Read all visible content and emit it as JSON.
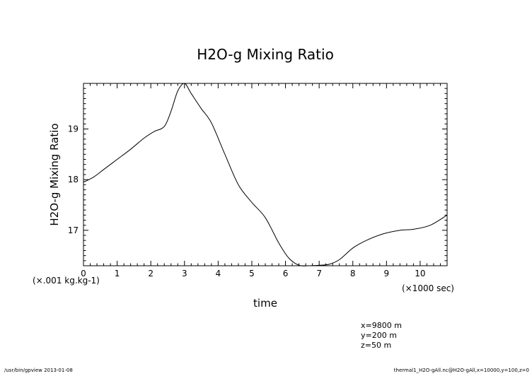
{
  "chart_data": {
    "type": "line",
    "title": "H2O-g Mixing Ratio",
    "xlabel": "time",
    "ylabel": "H2O-g Mixing Ratio",
    "x_unit_label": "(×1000 sec)",
    "y_unit_label": "(×.001 kg.kg-1)",
    "xlim": [
      0,
      10.8
    ],
    "ylim": [
      16.3,
      19.9
    ],
    "x_ticks": [
      0,
      1,
      2,
      3,
      4,
      5,
      6,
      7,
      8,
      9,
      10
    ],
    "y_ticks": [
      17,
      18,
      19
    ],
    "x_tick_labels": [
      "0",
      "1",
      "2",
      "3",
      "4",
      "5",
      "6",
      "7",
      "8",
      "9",
      "10"
    ],
    "y_tick_labels": [
      "17",
      "18",
      "19"
    ],
    "grid": false,
    "series": [
      {
        "x": [
          0,
          0.3,
          0.6,
          1.0,
          1.4,
          1.8,
          2.1,
          2.4,
          2.6,
          2.8,
          3.0,
          3.2,
          3.5,
          3.8,
          4.2,
          4.6,
          5.0,
          5.4,
          5.8,
          6.1,
          6.4,
          6.7,
          7.0,
          7.3,
          7.6,
          8.0,
          8.4,
          8.9,
          9.4,
          9.8,
          10.3,
          10.8
        ],
        "y": [
          17.95,
          18.05,
          18.2,
          18.4,
          18.6,
          18.82,
          18.95,
          19.05,
          19.35,
          19.75,
          19.9,
          19.7,
          19.4,
          19.12,
          18.5,
          17.9,
          17.55,
          17.25,
          16.75,
          16.45,
          16.31,
          16.3,
          16.31,
          16.33,
          16.42,
          16.65,
          16.8,
          16.93,
          17.0,
          17.02,
          17.1,
          17.3
        ]
      }
    ]
  },
  "info": {
    "x_position": "x=9800 m",
    "y_position": "y=200 m",
    "z_position": "z=50 m"
  },
  "footer": {
    "left": "/usr/bin/gpview  2013-01-08",
    "right": "thermal1_H2O-gAll.nc@H2O-gAll,x=10000,y=100,z=0"
  }
}
